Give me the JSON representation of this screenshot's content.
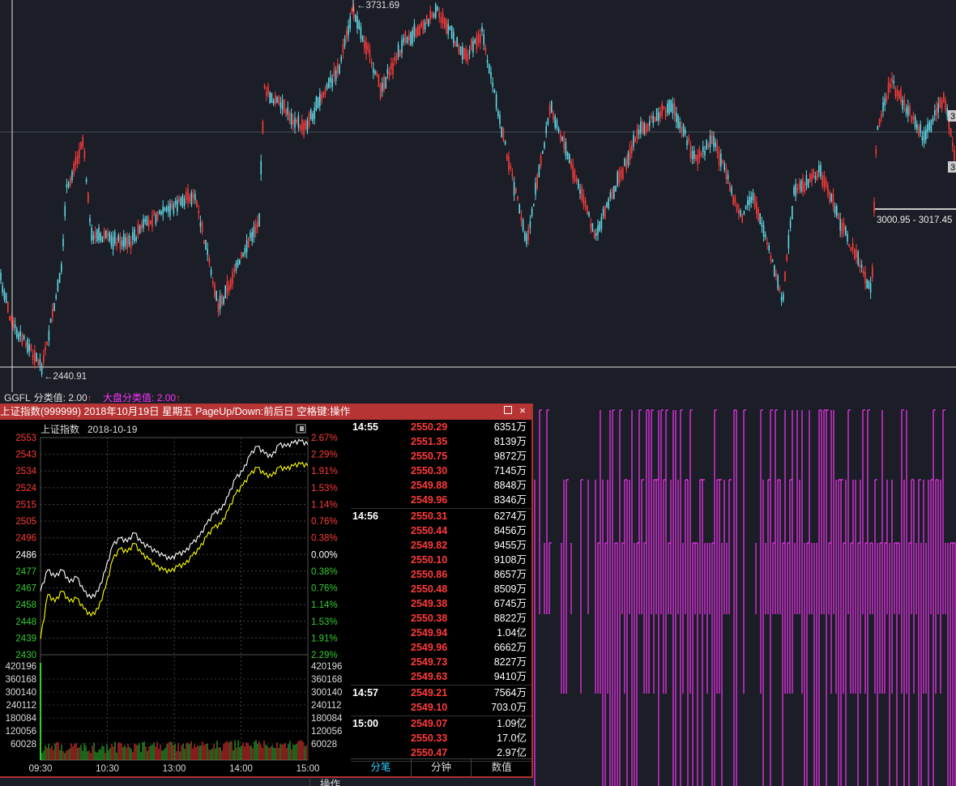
{
  "main_chart": {
    "high_label": "3731.69",
    "low_label": "2440.91",
    "range_label": "3000.95 - 3017.45",
    "right_edge_labels": [
      "3",
      "3"
    ]
  },
  "indicator": {
    "name": "GGFL",
    "value_label": "分类值: 2.00",
    "value_arrow": "↑",
    "market_label": "大盘分类值: 2.00",
    "market_arrow": "↑",
    "name_color": "#dddddd",
    "market_color": "#ff33ff"
  },
  "popup": {
    "title": "上证指数(999999) 2018年10月19日 星期五 PageUp/Down:前后日 空格键:操作",
    "restore_icon": "restore-icon",
    "close_icon": "close-icon",
    "close_glyph": "×",
    "chart_title": "上证指数",
    "chart_date": "2018-10-19",
    "chart_data": {
      "type": "line",
      "x_labels": [
        "09:30",
        "10:30",
        "13:00",
        "14:00",
        "15:00"
      ],
      "price_ticks": [
        "2553",
        "2543",
        "2534",
        "2524",
        "2515",
        "2505",
        "2496",
        "2486",
        "2477",
        "2467",
        "2458",
        "2448",
        "2439",
        "2430"
      ],
      "pct_ticks": [
        "2.67%",
        "2.29%",
        "1.91%",
        "1.53%",
        "1.14%",
        "0.76%",
        "0.38%",
        "0.00%",
        "0.38%",
        "0.76%",
        "1.14%",
        "1.53%",
        "1.91%",
        "2.29%"
      ],
      "volume_ticks": [
        "420196",
        "360168",
        "300140",
        "240112",
        "180084",
        "120056",
        "60028"
      ],
      "ylim": [
        2430,
        2553
      ],
      "prev_close": 2486,
      "series": [
        {
          "name": "",
          "color": "#ffffff",
          "values": [
            2466,
            2478,
            2474,
            2478,
            2471,
            2474,
            2466,
            2462,
            2466,
            2478,
            2492,
            2496,
            2494,
            2499,
            2493,
            2491,
            2488,
            2486,
            2484,
            2487,
            2488,
            2493,
            2497,
            2504,
            2510,
            2512,
            2520,
            2530,
            2534,
            2543,
            2548,
            2544,
            2542,
            2549,
            2548,
            2550,
            2551,
            2549
          ]
        },
        {
          "name": "",
          "color": "#ffff00",
          "values": [
            2439,
            2464,
            2460,
            2466,
            2460,
            2462,
            2456,
            2452,
            2456,
            2468,
            2484,
            2490,
            2488,
            2493,
            2487,
            2484,
            2480,
            2478,
            2477,
            2480,
            2481,
            2486,
            2490,
            2497,
            2502,
            2504,
            2512,
            2521,
            2526,
            2532,
            2536,
            2532,
            2531,
            2536,
            2535,
            2537,
            2538,
            2537
          ]
        }
      ]
    },
    "op_label": "操作",
    "ticks": [
      {
        "time": "14:55",
        "rows": [
          {
            "price": "2550.29",
            "vol": "6351万"
          },
          {
            "price": "2551.35",
            "vol": "8139万"
          },
          {
            "price": "2550.75",
            "vol": "9872万"
          },
          {
            "price": "2550.30",
            "vol": "7145万"
          },
          {
            "price": "2549.88",
            "vol": "8848万"
          },
          {
            "price": "2549.96",
            "vol": "8346万"
          }
        ]
      },
      {
        "time": "14:56",
        "rows": [
          {
            "price": "2550.31",
            "vol": "6274万"
          },
          {
            "price": "2550.44",
            "vol": "8456万"
          },
          {
            "price": "2549.82",
            "vol": "9455万"
          },
          {
            "price": "2550.10",
            "vol": "9108万"
          },
          {
            "price": "2550.86",
            "vol": "8657万"
          },
          {
            "price": "2550.48",
            "vol": "8509万"
          },
          {
            "price": "2549.38",
            "vol": "6745万"
          },
          {
            "price": "2550.38",
            "vol": "8822万"
          },
          {
            "price": "2549.94",
            "vol": "1.04亿"
          },
          {
            "price": "2549.96",
            "vol": "6662万"
          },
          {
            "price": "2549.73",
            "vol": "8227万"
          },
          {
            "price": "2549.63",
            "vol": "9410万"
          }
        ]
      },
      {
        "time": "14:57",
        "rows": [
          {
            "price": "2549.21",
            "vol": "7564万"
          },
          {
            "price": "2549.10",
            "vol": "703.0万"
          }
        ]
      },
      {
        "time": "15:00",
        "rows": [
          {
            "price": "2549.07",
            "vol": "1.09亿"
          },
          {
            "price": "2550.33",
            "vol": "17.0亿"
          },
          {
            "price": "2550.47",
            "vol": "2.97亿"
          }
        ]
      }
    ],
    "tabs": [
      {
        "label": "分笔",
        "active": true
      },
      {
        "label": "分钟",
        "active": false
      },
      {
        "label": "数值",
        "active": false
      }
    ]
  },
  "colors": {
    "up": "#ff3b3b",
    "down": "#5fd7e6",
    "magenta": "#ff33ff",
    "green_tick": "#33cc33"
  }
}
